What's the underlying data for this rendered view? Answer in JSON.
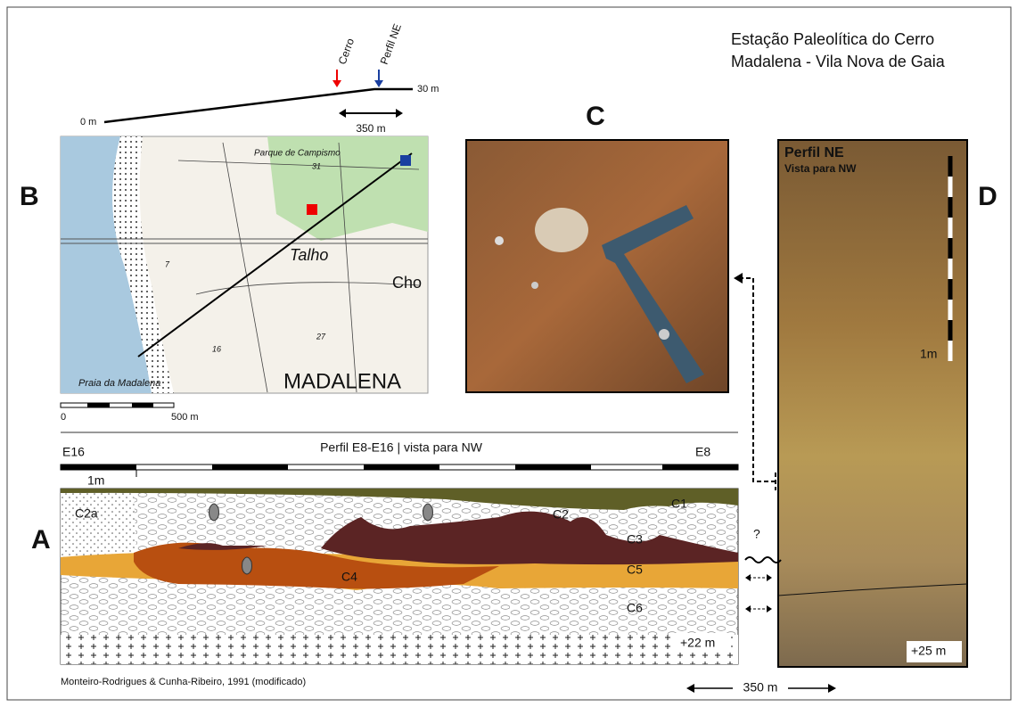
{
  "header": {
    "title_lines": [
      "Estação Paleolítica do Cerro",
      "Madalena - Vila Nova de Gaia"
    ]
  },
  "profile": {
    "cerro": "Cerro",
    "perfil_ne": "Perfil NE",
    "start": "0 m",
    "end": "30 m",
    "distance": "350 m"
  },
  "panels": {
    "B": {
      "letter": "B",
      "labels": [
        "Parque de Campismo",
        "Talho",
        "Cho",
        "Praia da Madalena",
        "MADALENA",
        "31",
        "7",
        "27",
        "16"
      ],
      "scale": [
        "0",
        "500 m"
      ]
    },
    "C": {
      "letter": "C"
    },
    "D": {
      "letter": "D",
      "title": "Perfil NE",
      "subtitle": "Vista para NW",
      "scale": "1m",
      "elevation": "+25 m"
    },
    "A": {
      "letter": "A",
      "title": "Perfil E8-E16 | vista para NW",
      "left": "E16",
      "right": "E8",
      "scale": "1m",
      "layers": [
        "C2a",
        "C2",
        "C1",
        "C3",
        "C4",
        "C5",
        "C6"
      ],
      "elevation": "+22 m",
      "question": "?",
      "credit": "Monteiro-Rodrigues & Cunha-Ribeiro, 1991 (modificado)"
    }
  },
  "footer": {
    "distance": "350 m"
  }
}
